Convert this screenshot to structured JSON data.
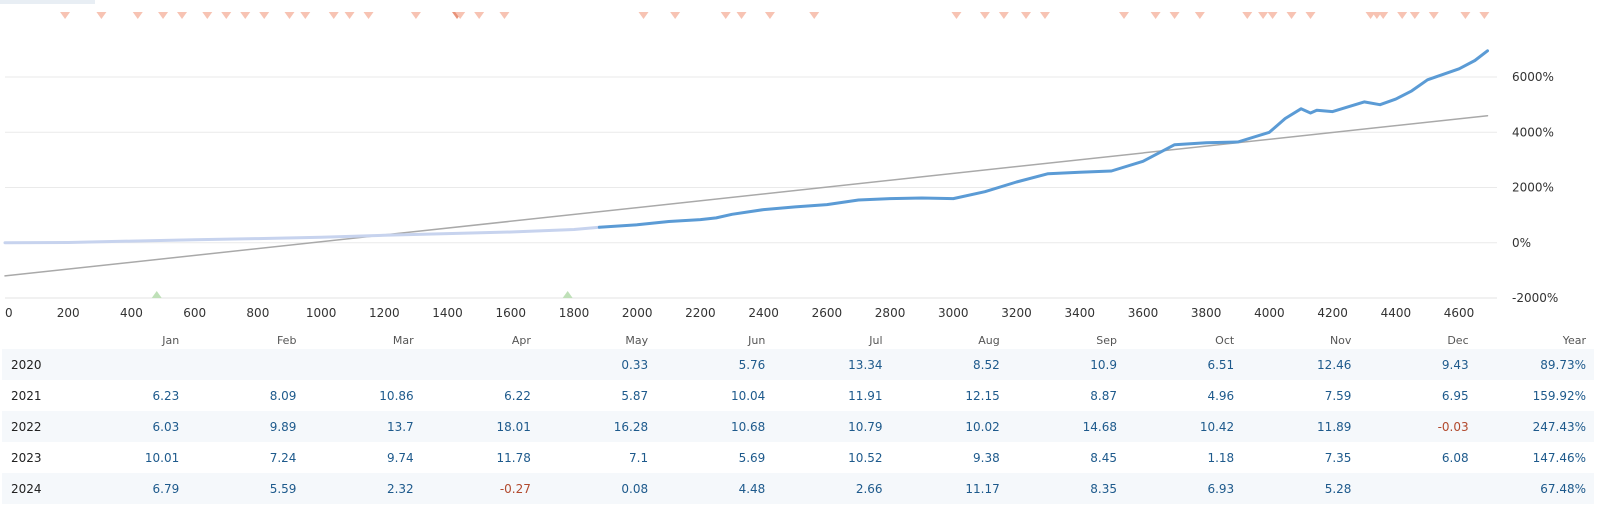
{
  "chart_data": {
    "type": "line",
    "x_ticks": [
      "0",
      "200",
      "400",
      "600",
      "800",
      "1000",
      "1200",
      "1400",
      "1600",
      "1800",
      "2000",
      "2200",
      "2400",
      "2600",
      "2800",
      "3000",
      "3200",
      "3400",
      "3600",
      "3800",
      "4000",
      "4200",
      "4400",
      "4600"
    ],
    "y_ticks": [
      "6000%",
      "4000%",
      "2000%",
      "0%",
      "-2000%"
    ],
    "xlim": [
      0,
      4720
    ],
    "ylim": [
      -2000,
      8500
    ],
    "grid": true,
    "series": [
      {
        "color": "#c7d3ee",
        "x": [
          0,
          200,
          400,
          600,
          800,
          1000,
          1200,
          1400,
          1600,
          1800,
          1880
        ],
        "y": [
          0,
          10,
          60,
          110,
          150,
          200,
          270,
          330,
          390,
          480,
          560
        ]
      },
      {
        "color": "#5b9bd5",
        "x": [
          1880,
          2000,
          2100,
          2200,
          2250,
          2300,
          2400,
          2500,
          2600,
          2700,
          2800,
          2900,
          3000,
          3100,
          3200,
          3300,
          3400,
          3500,
          3600,
          3700,
          3800,
          3900,
          4000,
          4050,
          4100,
          4130,
          4150,
          4200,
          4300,
          4350,
          4400,
          4450,
          4500,
          4550,
          4600,
          4650,
          4690
        ],
        "y": [
          560,
          650,
          770,
          840,
          900,
          1030,
          1200,
          1300,
          1380,
          1550,
          1600,
          1620,
          1600,
          1850,
          2200,
          2500,
          2550,
          2600,
          2950,
          3550,
          3620,
          3650,
          4000,
          4500,
          4850,
          4700,
          4800,
          4750,
          5100,
          5000,
          5200,
          5500,
          5900,
          6100,
          6300,
          6600,
          6950
        ]
      },
      {
        "color": "#a9a9a9",
        "x": [
          0,
          4690
        ],
        "y": [
          -1200,
          4600
        ]
      }
    ],
    "top_markers": {
      "color": "#f7c3b3",
      "dark_color": "#e8937a",
      "x": [
        190,
        305,
        420,
        500,
        560,
        640,
        700,
        760,
        820,
        900,
        950,
        1040,
        1090,
        1150,
        1300,
        1430,
        1440,
        1500,
        1580,
        2020,
        2120,
        2280,
        2330,
        2420,
        2560,
        3010,
        3100,
        3160,
        3230,
        3290,
        3540,
        3640,
        3700,
        3780,
        3930,
        3980,
        4010,
        4070,
        4130,
        4320,
        4340,
        4360,
        4420,
        4460,
        4520,
        4620,
        4680
      ],
      "dark": [
        false,
        false,
        false,
        false,
        false,
        false,
        false,
        false,
        false,
        false,
        false,
        false,
        false,
        false,
        false,
        true,
        false,
        false,
        false,
        false,
        false,
        false,
        false,
        false,
        false,
        false,
        false,
        false,
        false,
        false,
        false,
        false,
        false,
        false,
        false,
        false,
        false,
        false,
        false,
        false,
        false,
        false,
        false,
        false,
        false,
        false,
        false
      ]
    },
    "bottom_markers": {
      "color": "#bfe0b8",
      "x": [
        480,
        1780
      ]
    }
  },
  "table": {
    "columns": [
      "",
      "Jan",
      "Feb",
      "Mar",
      "Apr",
      "May",
      "Jun",
      "Jul",
      "Aug",
      "Sep",
      "Oct",
      "Nov",
      "Dec",
      "Year"
    ],
    "rows": [
      [
        "2020",
        "",
        "",
        "",
        "",
        "0.33",
        "5.76",
        "13.34",
        "8.52",
        "10.9",
        "6.51",
        "12.46",
        "9.43",
        "89.73%"
      ],
      [
        "2021",
        "6.23",
        "8.09",
        "10.86",
        "6.22",
        "5.87",
        "10.04",
        "11.91",
        "12.15",
        "8.87",
        "4.96",
        "7.59",
        "6.95",
        "159.92%"
      ],
      [
        "2022",
        "6.03",
        "9.89",
        "13.7",
        "18.01",
        "16.28",
        "10.68",
        "10.79",
        "10.02",
        "14.68",
        "10.42",
        "11.89",
        "-0.03",
        "247.43%"
      ],
      [
        "2023",
        "10.01",
        "7.24",
        "9.74",
        "11.78",
        "7.1",
        "5.69",
        "10.52",
        "9.38",
        "8.45",
        "1.18",
        "7.35",
        "6.08",
        "147.46%"
      ],
      [
        "2024",
        "6.79",
        "5.59",
        "2.32",
        "-0.27",
        "0.08",
        "4.48",
        "2.66",
        "11.17",
        "8.35",
        "6.93",
        "5.28",
        "",
        "67.48%"
      ]
    ]
  }
}
